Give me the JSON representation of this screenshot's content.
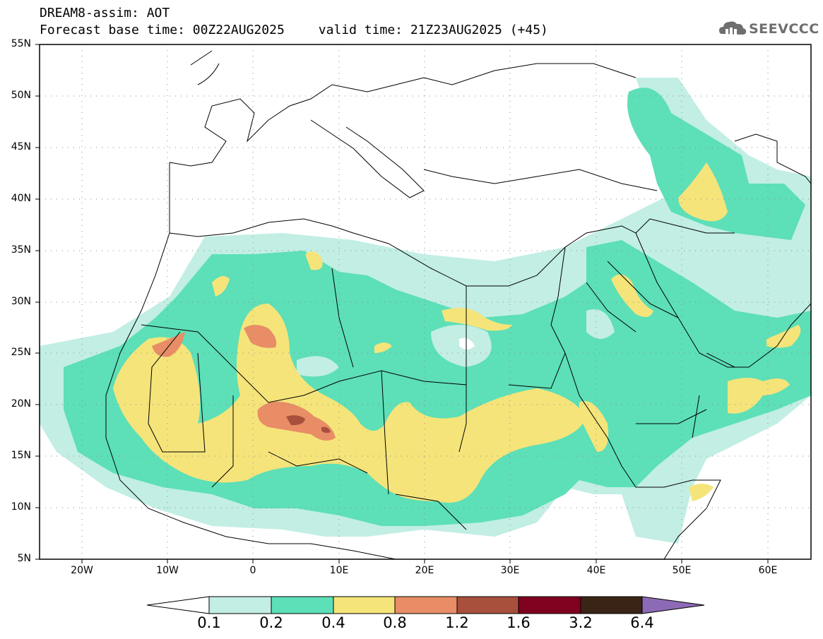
{
  "title": {
    "line1": "DREAM8-assim: AOT",
    "base_time": "Forecast base time: 00Z22AUG2025",
    "valid_time": "valid time: 21Z23AUG2025 (+45)"
  },
  "logo": {
    "text": "SEEVCCC",
    "icon": "cloud-logo-icon"
  },
  "map": {
    "projection": "lat-lon",
    "lon_range": [
      -25,
      65
    ],
    "lat_range": [
      5,
      55
    ],
    "grid_lines": "dotted",
    "y_ticks": [
      "55N",
      "50N",
      "45N",
      "40N",
      "35N",
      "30N",
      "25N",
      "20N",
      "15N",
      "10N",
      "5N"
    ],
    "x_ticks": [
      "20W",
      "10W",
      "0",
      "10E",
      "20E",
      "30E",
      "40E",
      "50E",
      "60E"
    ]
  },
  "colorbar": {
    "labels": [
      "0.1",
      "0.2",
      "0.4",
      "0.8",
      "1.2",
      "1.6",
      "3.2",
      "6.4"
    ],
    "colors": [
      "#ffffff",
      "#c2eee4",
      "#5ddfb8",
      "#f5e47a",
      "#e88d66",
      "#a8503c",
      "#800020",
      "#3a2416",
      "#8d6ab5"
    ]
  },
  "colors": {
    "aot_0_1_0_2": "#c2eee4",
    "aot_0_2_0_4": "#5ddfb8",
    "aot_0_4_0_8": "#f5e47a",
    "aot_0_8_1_2": "#e88d66",
    "aot_1_2_1_6": "#a8503c",
    "border": "#000000",
    "logo": "#6f6f6f"
  }
}
